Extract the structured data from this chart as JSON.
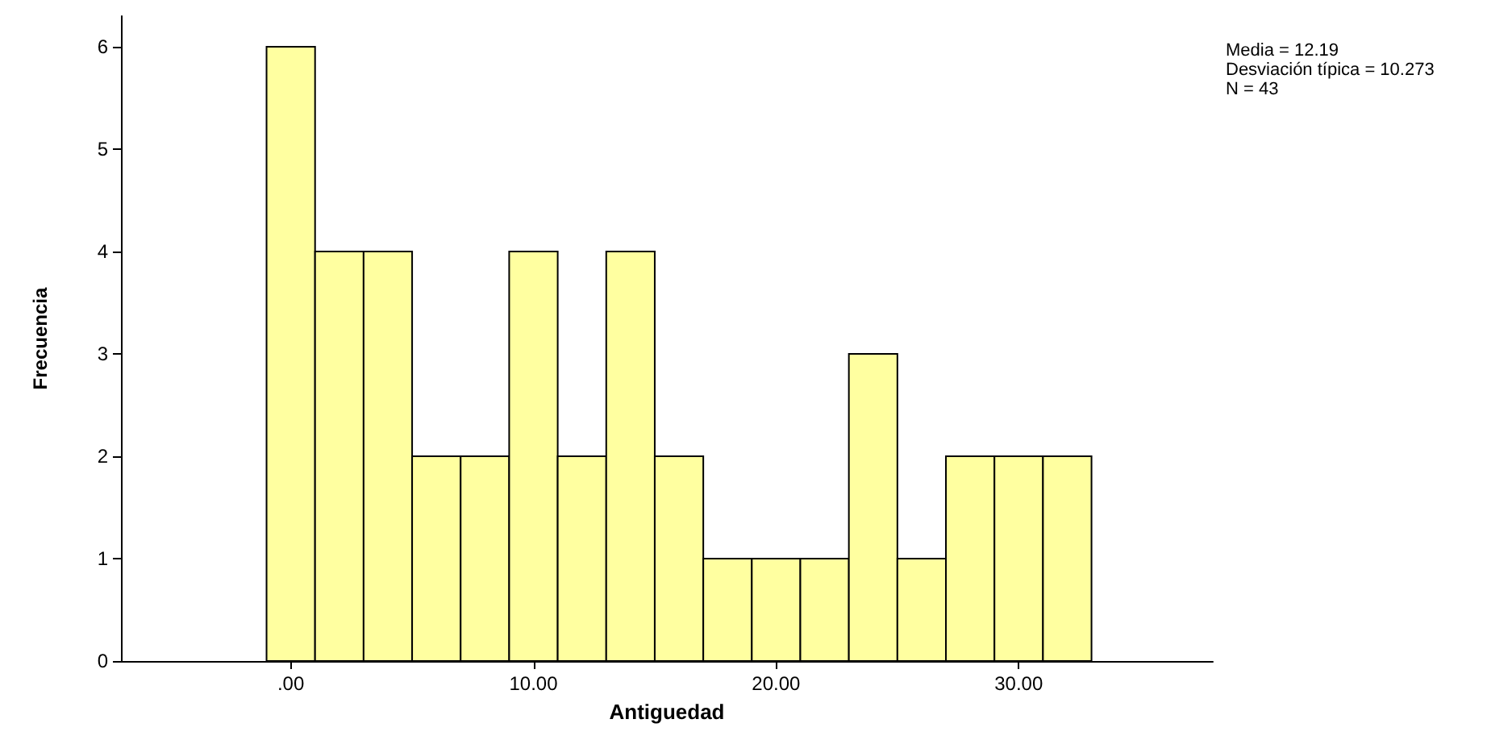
{
  "chart_data": {
    "type": "histogram",
    "xlabel": "Antiguedad",
    "ylabel": "Frecuencia",
    "bins": [
      -1,
      1,
      3,
      5,
      7,
      9,
      11,
      13,
      15,
      17,
      19,
      21,
      23,
      25,
      27,
      29,
      31,
      33
    ],
    "values": [
      6,
      4,
      4,
      2,
      2,
      4,
      2,
      4,
      2,
      1,
      1,
      1,
      3,
      1,
      2,
      2,
      2
    ],
    "color": "#ffffa0",
    "xlim": [
      -7,
      38
    ],
    "xticks": [
      {
        "value": 0,
        "label": ".00"
      },
      {
        "value": 10,
        "label": "10.00"
      },
      {
        "value": 20,
        "label": "20.00"
      },
      {
        "value": 30,
        "label": "30.00"
      }
    ],
    "ylim": [
      0,
      6.3
    ],
    "yticks": [
      0,
      1,
      2,
      3,
      4,
      5,
      6
    ],
    "grid": false,
    "annotations": [
      "Media = 12.19",
      "Desviación típica = 10.273",
      "N = 43"
    ]
  }
}
